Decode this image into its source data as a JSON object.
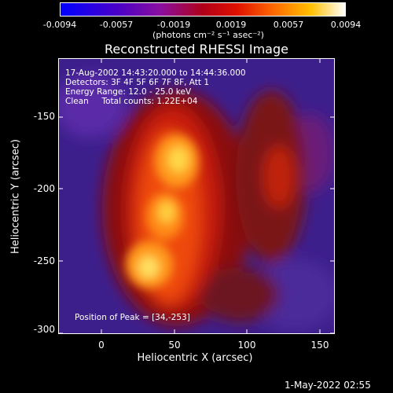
{
  "colorbar": {
    "ticks": [
      "-0.0094",
      "-0.0057",
      "-0.0019",
      "0.0019",
      "0.0057",
      "0.0094"
    ],
    "unit": "(photons cm⁻² s⁻¹ asec⁻²)"
  },
  "title": "Reconstructed RHESSI Image",
  "info": {
    "time_range": "17-Aug-2002 14:43:20.000 to 14:44:36.000",
    "detectors": "Detectors: 3F 4F 5F 6F 7F 8F, Att 1",
    "energy": "Energy Range: 12.0 - 25.0 keV",
    "clean": "Clean     Total counts: 1.22E+04",
    "peak": "Position of Peak = [34,-253]"
  },
  "axes": {
    "x_label": "Heliocentric X (arcsec)",
    "y_label": "Heliocentric Y (arcsec)",
    "x_ticks": [
      "0",
      "50",
      "100",
      "150"
    ],
    "y_ticks": [
      "-150",
      "-200",
      "-250",
      "-300"
    ]
  },
  "footer": {
    "timestamp": "1-May-2022 02:55"
  }
}
